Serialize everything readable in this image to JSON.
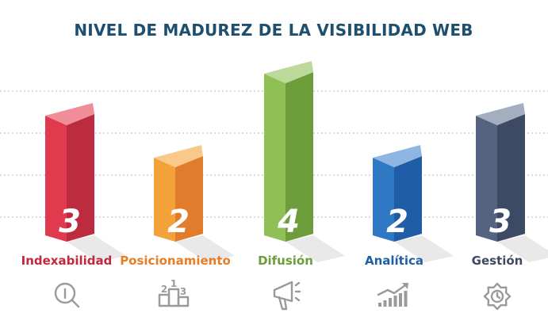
{
  "chart_data": {
    "type": "bar",
    "title": "NIVEL DE MADUREZ DE LA VISIBILIDAD WEB",
    "categories": [
      "Indexabilidad",
      "Posicionamiento",
      "Difusión",
      "Analítica",
      "Gestión"
    ],
    "values": [
      3,
      2,
      4,
      2,
      3
    ],
    "ylim": [
      0,
      4
    ],
    "grid": true,
    "colors": {
      "Indexabilidad": {
        "front": "#e03a4e",
        "side": "#bd2b3e",
        "top": "#f08d99",
        "label": "#c0283b"
      },
      "Posicionamiento": {
        "front": "#f3a23a",
        "side": "#e07c2b",
        "top": "#f8c98a",
        "label": "#e77d24"
      },
      "Difusión": {
        "front": "#8fbf55",
        "side": "#6d9c3a",
        "top": "#bcd99a",
        "label": "#6d9c3a"
      },
      "Analítica": {
        "front": "#2e78c4",
        "side": "#1f5ea7",
        "top": "#8fb6e3",
        "label": "#1f5ea7"
      },
      "Gestión": {
        "front": "#546480",
        "side": "#3c4a63",
        "top": "#a3aec1",
        "label": "#3e4a60"
      }
    },
    "icons": [
      "magnifier-icon",
      "podium-icon",
      "megaphone-icon",
      "growth-chart-icon",
      "gear-clock-icon"
    ]
  }
}
